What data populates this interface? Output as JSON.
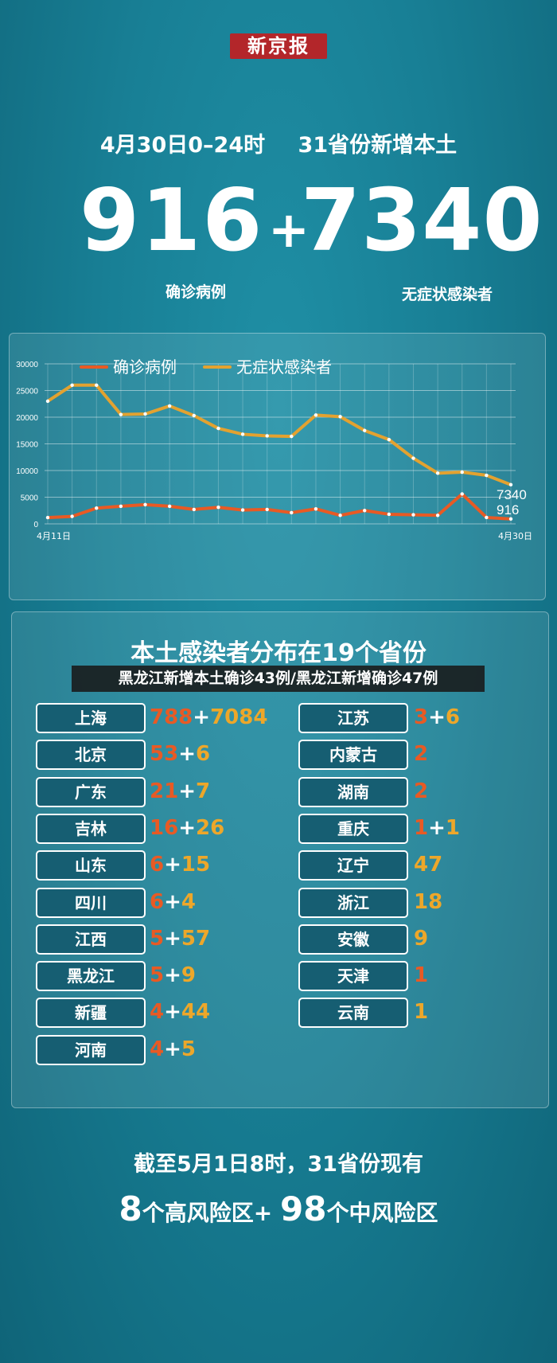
{
  "brand": "新京报",
  "headline": {
    "left": "4月30日0–24时",
    "right": "31省份新增本土"
  },
  "totals": {
    "confirmed": "916",
    "plus": "+",
    "asymptomatic": "7340",
    "confirmed_label": "确诊病例",
    "asymptomatic_label": "无症状感染者"
  },
  "chart_data": {
    "type": "line",
    "x": [
      "4月11日",
      "4月12日",
      "4月13日",
      "4月14日",
      "4月15日",
      "4月16日",
      "4月17日",
      "4月18日",
      "4月19日",
      "4月20日",
      "4月21日",
      "4月22日",
      "4月23日",
      "4月24日",
      "4月25日",
      "4月26日",
      "4月27日",
      "4月28日",
      "4月29日",
      "4月30日"
    ],
    "x_tick_labels": [
      "4月11日",
      "4月30日"
    ],
    "y_ticks": [
      "0",
      "5000",
      "10000",
      "15000",
      "20000",
      "25000",
      "30000"
    ],
    "ylim": [
      0,
      30000
    ],
    "legend": [
      "确诊病例",
      "无症状感染者"
    ],
    "series": [
      {
        "name": "确诊病例",
        "color": "#e85a24",
        "values": [
          1180,
          1400,
          2950,
          3300,
          3600,
          3300,
          2700,
          3100,
          2600,
          2700,
          2100,
          2800,
          1600,
          2500,
          1800,
          1700,
          1600,
          5600,
          1200,
          916
        ]
      },
      {
        "name": "无症状感染者",
        "color": "#e3a230",
        "values": [
          23000,
          26000,
          26000,
          20500,
          20600,
          22100,
          20300,
          17900,
          16800,
          16500,
          16400,
          20400,
          20100,
          17500,
          15800,
          12300,
          9500,
          9700,
          9100,
          7340
        ]
      }
    ],
    "end_labels": {
      "asymptomatic": "7340",
      "confirmed": "916"
    },
    "grid": true
  },
  "distribution": {
    "title": "本土感染者分布在19个省份",
    "overlay_caption": "黑龙江新增本土确诊43例/黑龙江新增确诊47例",
    "left": [
      {
        "name": "上海",
        "confirmed": "788",
        "plus": "+",
        "asym": "7084"
      },
      {
        "name": "北京",
        "confirmed": "53",
        "plus": "+",
        "asym": "6"
      },
      {
        "name": "广东",
        "confirmed": "21",
        "plus": "+",
        "asym": "7"
      },
      {
        "name": "吉林",
        "confirmed": "16",
        "plus": "+",
        "asym": "26"
      },
      {
        "name": "山东",
        "confirmed": "6",
        "plus": "+",
        "asym": "15"
      },
      {
        "name": "四川",
        "confirmed": "6",
        "plus": "+",
        "asym": "4"
      },
      {
        "name": "江西",
        "confirmed": "5",
        "plus": "+",
        "asym": "57"
      },
      {
        "name": "黑龙江",
        "confirmed": "5",
        "plus": "+",
        "asym": "9"
      },
      {
        "name": "新疆",
        "confirmed": "4",
        "plus": "+",
        "asym": "44"
      },
      {
        "name": "河南",
        "confirmed": "4",
        "plus": "+",
        "asym": "5"
      }
    ],
    "right": [
      {
        "name": "江苏",
        "confirmed": "3",
        "plus": "+",
        "asym": "6"
      },
      {
        "name": "内蒙古",
        "confirmed": "2",
        "plus": "",
        "asym": ""
      },
      {
        "name": "湖南",
        "confirmed": "2",
        "plus": "",
        "asym": ""
      },
      {
        "name": "重庆",
        "confirmed": "1",
        "plus": "+",
        "asym": "1"
      },
      {
        "name": "辽宁",
        "confirmed": "",
        "plus": "",
        "asym": "47"
      },
      {
        "name": "浙江",
        "confirmed": "",
        "plus": "",
        "asym": "18"
      },
      {
        "name": "安徽",
        "confirmed": "",
        "plus": "",
        "asym": "9"
      },
      {
        "name": "天津",
        "confirmed": "1",
        "plus": "",
        "asym": ""
      },
      {
        "name": "云南",
        "confirmed": "",
        "plus": "",
        "asym": "1"
      }
    ]
  },
  "footer": {
    "line1": "截至5月1日8时，31省份现有",
    "high_count": "8",
    "high_label": "个高风险区",
    "plus": "+ ",
    "mid_count": "98",
    "mid_label": "个中风险区"
  }
}
